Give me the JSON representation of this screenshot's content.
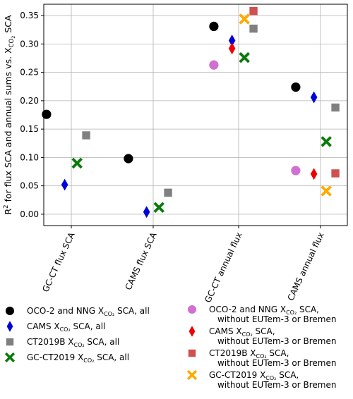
{
  "chart_data": {
    "type": "scatter",
    "title": "",
    "xlabel": "",
    "ylabel": "R² for flux SCA and annual sums vs. X_CO2 SCA",
    "ylabel_parts": {
      "prefix": "R",
      "sup": "2",
      "middle": " for flux SCA and annual sums vs. X",
      "sub": "CO",
      "subsub": "2",
      "suffix": " SCA"
    },
    "ylim": [
      -0.02,
      0.37
    ],
    "yticks": [
      0.0,
      0.05,
      0.1,
      0.15,
      0.2,
      0.25,
      0.3,
      0.35
    ],
    "ytick_labels": [
      "0.00",
      "0.05",
      "0.10",
      "0.15",
      "0.20",
      "0.25",
      "0.30",
      "0.35"
    ],
    "grid": true,
    "legend_placement": "below",
    "categories": [
      "GC-CT flux SCA",
      "CAMS flux SCA",
      "GC-CT annual flux",
      "CAMS annual flux"
    ],
    "series": [
      {
        "name_main": "OCO-2 and NNG X",
        "name_sub": "CO₂",
        "name_tail": " SCA, all",
        "name_line2": "",
        "marker": "circle",
        "color": "#000000",
        "offset": -0.3,
        "values": [
          0.176,
          0.098,
          0.331,
          0.224
        ]
      },
      {
        "name_main": "CAMS X",
        "name_sub": "CO₂",
        "name_tail": " SCA, all",
        "name_line2": "",
        "marker": "thin_diamond",
        "color": "#0000dd",
        "offset": -0.08,
        "values": [
          0.052,
          0.004,
          0.306,
          0.206
        ]
      },
      {
        "name_main": "CT2019B X",
        "name_sub": "CO₂",
        "name_tail": " SCA, all",
        "name_line2": "",
        "marker": "square",
        "color": "#808080",
        "offset": 0.18,
        "values": [
          0.139,
          0.038,
          0.327,
          0.188
        ]
      },
      {
        "name_main": "GC-CT2019 X",
        "name_sub": "CO₂",
        "name_tail": " SCA, all",
        "name_line2": "",
        "marker": "x",
        "color": "#0a7a0a",
        "offset": 0.07,
        "values": [
          0.09,
          0.012,
          0.276,
          0.128
        ]
      },
      {
        "name_main": "OCO-2 and NNG X",
        "name_sub": "CO₂",
        "name_tail": " SCA,",
        "name_line2": "without EUTem-3 or Bremen",
        "marker": "circle",
        "color": "#d070d0",
        "offset": -0.3,
        "values": [
          null,
          null,
          0.263,
          0.077
        ]
      },
      {
        "name_main": "CAMS X",
        "name_sub": "CO₂",
        "name_tail": " SCA,",
        "name_line2": "without EUTem-3 or Bremen",
        "marker": "thin_diamond",
        "color": "#ee0000",
        "offset": -0.08,
        "values": [
          null,
          null,
          0.292,
          0.071
        ]
      },
      {
        "name_main": "CT2019B X",
        "name_sub": "CO₂",
        "name_tail": " SCA,",
        "name_line2": "without EUTem-3 or Bremen",
        "marker": "square",
        "color": "#d05050",
        "offset": 0.18,
        "values": [
          null,
          null,
          0.358,
          0.072
        ]
      },
      {
        "name_main": "GC-CT2019 X",
        "name_sub": "CO₂",
        "name_tail": " SCA,",
        "name_line2": "without EUTem-3 or Bremen",
        "marker": "x",
        "color": "#ffaa00",
        "offset": 0.07,
        "values": [
          null,
          null,
          0.344,
          0.041
        ]
      }
    ]
  }
}
